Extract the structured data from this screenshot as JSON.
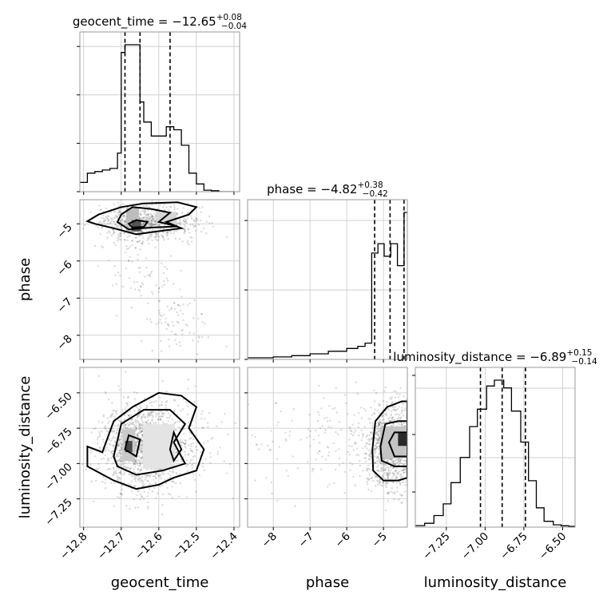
{
  "chart_data": [
    {
      "type": "histogram",
      "panel": "geocent_time_1d",
      "title_base": "geocent_time = −12.65",
      "title_sup": "+0.08",
      "title_sub": "−0.04",
      "xlim": [
        -12.81,
        -12.385
      ],
      "quantile_lines": [
        -12.69,
        -12.65,
        -12.57
      ],
      "bin_edges": [
        -12.81,
        -12.79,
        -12.77,
        -12.75,
        -12.73,
        -12.71,
        -12.7,
        -12.69,
        -12.67,
        -12.65,
        -12.64,
        -12.62,
        -12.6,
        -12.58,
        -12.56,
        -12.54,
        -12.52,
        -12.5,
        -12.48,
        -12.46,
        -12.44,
        -12.42,
        -12.4
      ],
      "counts": [
        6,
        12,
        13,
        14,
        15,
        25,
        90,
        95,
        95,
        58,
        45,
        36,
        36,
        42,
        40,
        30,
        12,
        5,
        1,
        0.6,
        0,
        0
      ]
    },
    {
      "type": "histogram",
      "panel": "phase_1d",
      "title_base": "phase = −4.82",
      "title_sup": "+0.38",
      "title_sub": "−0.42",
      "xlim": [
        -8.7,
        -4.35
      ],
      "quantile_lines": [
        -5.24,
        -4.82,
        -4.44
      ],
      "bin_edges": [
        -8.7,
        -8.0,
        -7.5,
        -7.0,
        -6.5,
        -6.0,
        -5.7,
        -5.5,
        -5.32,
        -5.15,
        -4.98,
        -4.8,
        -4.62,
        -4.44,
        -4.35
      ],
      "counts": [
        0.5,
        0.8,
        1.2,
        1.8,
        2.6,
        3.5,
        4.2,
        5.2,
        34,
        37,
        33,
        37,
        30,
        47
      ]
    },
    {
      "type": "histogram",
      "panel": "luminosity_distance_1d",
      "title_base": "luminosity_distance = −6.89",
      "title_sup": "+0.15",
      "title_sub": "−0.14",
      "xlim": [
        -7.45,
        -6.42
      ],
      "xticks": [
        -7.25,
        -7.0,
        -6.75,
        -6.5
      ],
      "xtick_labels": [
        "−7.25",
        "−7.00",
        "−6.75",
        "−6.50"
      ],
      "xlabel": "luminosity_distance",
      "quantile_lines": [
        -7.03,
        -6.89,
        -6.74
      ],
      "bin_edges": [
        -7.45,
        -7.39,
        -7.33,
        -7.27,
        -7.22,
        -7.16,
        -7.1,
        -7.05,
        -6.99,
        -6.94,
        -6.88,
        -6.83,
        -6.77,
        -6.72,
        -6.67,
        -6.62,
        -6.56,
        -6.51,
        -6.46,
        -6.42
      ],
      "counts": [
        0.8,
        2,
        6,
        12,
        23,
        36,
        52,
        61,
        73,
        76,
        72,
        60,
        44,
        24,
        10,
        3,
        1.2,
        0.7,
        0.4
      ]
    },
    {
      "type": "scatter",
      "panel": "geocent_time_vs_phase",
      "xlim": [
        -12.81,
        -12.385
      ],
      "ylim": [
        -8.65,
        -4.35
      ],
      "yticks": [
        -5,
        -6,
        -7,
        -8
      ],
      "ytick_labels": [
        "−5",
        "−6",
        "−7",
        "−8"
      ],
      "ylabel": "phase",
      "density_peak": [
        -12.66,
        -4.9
      ]
    },
    {
      "type": "scatter",
      "panel": "geocent_time_vs_luminosity_distance",
      "xlim": [
        -12.81,
        -12.385
      ],
      "ylim": [
        -7.45,
        -6.32
      ],
      "xticks": [
        -12.8,
        -12.7,
        -12.6,
        -12.5,
        -12.4
      ],
      "xtick_labels": [
        "−12.8",
        "−12.7",
        "−12.6",
        "−12.5",
        "−12.4"
      ],
      "yticks": [
        -6.5,
        -6.75,
        -7.0,
        -7.25
      ],
      "ytick_labels": [
        "−6.50",
        "−6.75",
        "−7.00",
        "−7.25"
      ],
      "xlabel": "geocent_time",
      "ylabel": "luminosity_distance",
      "density_peak": [
        -12.68,
        -6.88
      ]
    },
    {
      "type": "scatter",
      "panel": "phase_vs_luminosity_distance",
      "xlim": [
        -8.7,
        -4.35
      ],
      "ylim": [
        -7.45,
        -6.32
      ],
      "xticks": [
        -8,
        -7,
        -6,
        -5
      ],
      "xtick_labels": [
        "−8",
        "−7",
        "−6",
        "−5"
      ],
      "xlabel": "phase",
      "density_peak": [
        -4.45,
        -6.83
      ]
    }
  ]
}
